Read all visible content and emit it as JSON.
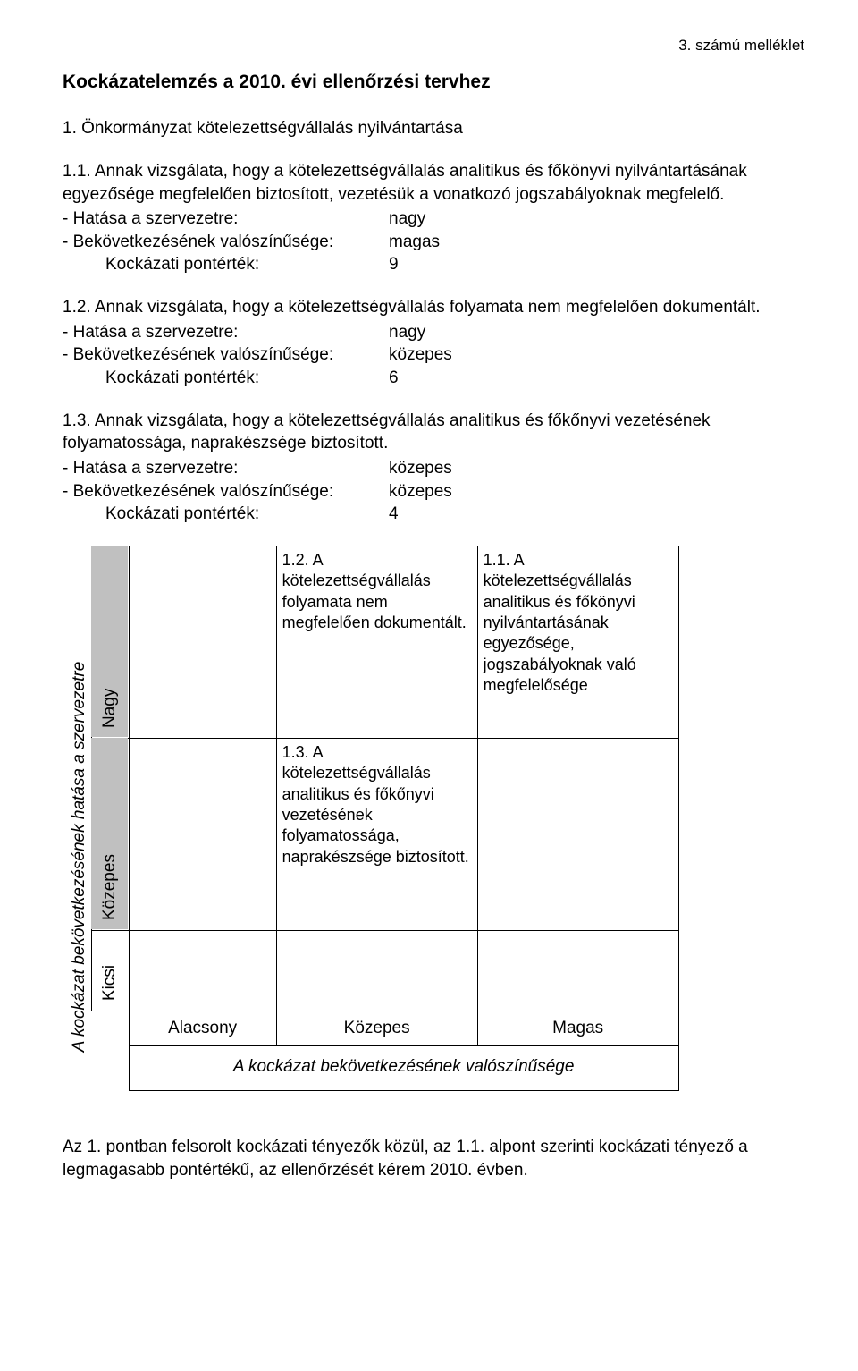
{
  "header": {
    "attachment": "3. számú melléklet"
  },
  "title": "Kockázatelemzés a 2010. évi ellenőrzési tervhez",
  "section1": {
    "heading": "1.  Önkormányzat kötelezettségvállalás nyilvántartása"
  },
  "items": [
    {
      "num": "1.1.",
      "text": "1.1. Annak vizsgálata, hogy a kötelezettségvállalás analitikus és főkönyvi nyilvántartásának egyezősége megfelelően biztosított, vezetésük a vonatkozó jogszabályoknak megfelelő.",
      "impact_label": "- Hatása a szervezetre:",
      "impact_value": "nagy",
      "prob_label": "- Bekövetkezésének valószínűsége:",
      "prob_value": "magas",
      "score_label": "Kockázati pontérték:",
      "score_value": "9"
    },
    {
      "num": "1.2.",
      "text": "1.2.  Annak vizsgálata, hogy a kötelezettségvállalás folyamata nem megfelelően dokumentált.",
      "impact_label": "- Hatása a szervezetre:",
      "impact_value": "nagy",
      "prob_label": "- Bekövetkezésének valószínűsége:",
      "prob_value": "közepes",
      "score_label": "Kockázati pontérték:",
      "score_value": "6"
    },
    {
      "num": "1.3.",
      "text": "1.3. Annak vizsgálata, hogy a kötelezettségvállalás analitikus és főkőnyvi vezetésének folyamatossága, naprakészsége biztosított.",
      "impact_label": "- Hatása a szervezetre:",
      "impact_value": "közepes",
      "prob_label": "- Bekövetkezésének valószínűsége:",
      "prob_value": "közepes",
      "score_label": "Kockázati pontérték:",
      "score_value": "4"
    }
  ],
  "matrix": {
    "y_axis": "A kockázat bekövetkezésének hatása a szervezetre",
    "x_axis": "A kockázat bekövetkezésének valószínűsége",
    "row_labels": [
      "Nagy",
      "Közepes",
      "Kicsi"
    ],
    "col_labels": [
      "Alacsony",
      "Közepes",
      "Magas"
    ],
    "cells": {
      "nagy_kozepes": "1.2. A kötelezettségvállalás folyamata nem megfelelően dokumentált.",
      "nagy_magas": "1.1. A kötelezettségvállalás analitikus és főkönyvi nyilvántartásának egyezősége, jogszabályoknak való megfelelősége",
      "kozepes_kozepes": "1.3. A kötelezettségvállalás analitikus és főkőnyvi vezetésének folyamatossága, naprakészsége biztosított."
    },
    "row_shaded": "#c0c0c0",
    "border_color": "#000000",
    "background": "#ffffff"
  },
  "summary": "Az 1. pontban felsorolt kockázati tényezők közül, az 1.1. alpont szerinti kockázati tényező a legmagasabb pontértékű, az ellenőrzését kérem 2010. évben."
}
